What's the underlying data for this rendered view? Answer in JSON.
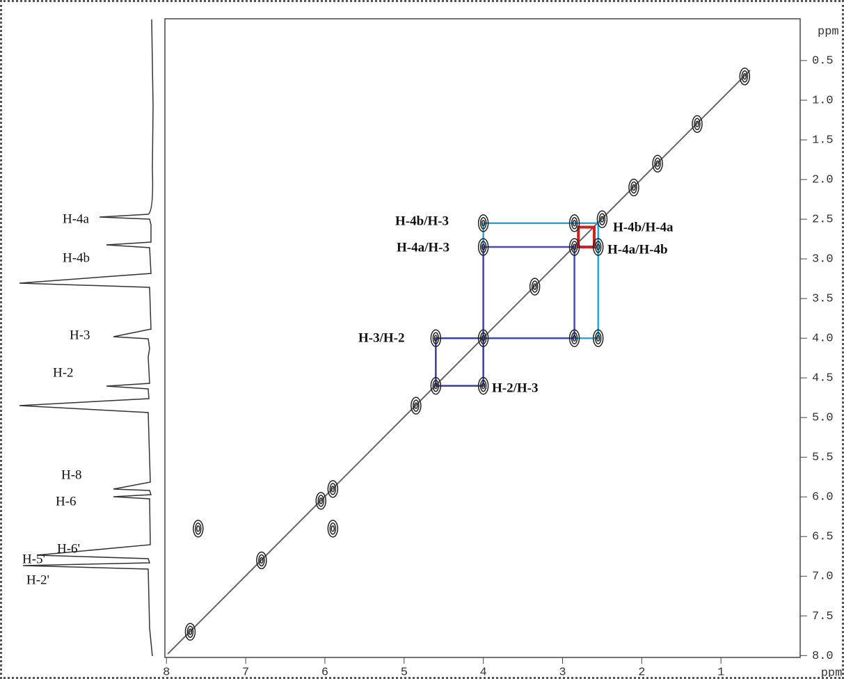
{
  "chart_data": {
    "type": "scatter",
    "xlabel": "ppm",
    "ylabel": "ppm",
    "xlim": [
      8.02,
      0
    ],
    "ylim": [
      0,
      8.05
    ],
    "xticks": [
      8,
      7,
      6,
      5,
      4,
      3,
      2,
      1
    ],
    "yticks": [
      0.5,
      {
        "value": 1,
        "label": "1.0"
      },
      1.5,
      {
        "value": 2,
        "label": "2.0"
      },
      2.5,
      {
        "value": 3,
        "label": "3.0"
      },
      3.5,
      {
        "value": 4,
        "label": "4.0"
      },
      4.5,
      {
        "value": 5,
        "label": "5.0"
      },
      5.5,
      {
        "value": 6,
        "label": "6.0"
      },
      6.5,
      {
        "value": 7,
        "label": "7.0"
      },
      7.5,
      {
        "value": 8,
        "label": "8.0"
      }
    ],
    "x": [
      0.7,
      1.3,
      1.8,
      2.1,
      2.5,
      2.85,
      3.35,
      4.0,
      4.6,
      4.85,
      5.9,
      6.05,
      6.8,
      7.7,
      4.0,
      4.0,
      2.85,
      2.55,
      2.55,
      2.85,
      4.6,
      4.0,
      7.6,
      5.9
    ],
    "values": [
      0.7,
      1.3,
      1.8,
      2.1,
      2.5,
      2.85,
      3.35,
      4.0,
      4.6,
      4.85,
      5.9,
      6.05,
      6.8,
      7.7,
      2.55,
      2.85,
      2.55,
      2.85,
      4.0,
      4.0,
      4.0,
      4.6,
      6.4,
      6.4
    ],
    "color": "#222222",
    "annotations": [
      "H-4b/H-3",
      "H-4a/H-3",
      "H-3/H-2",
      "H-2/H-3",
      "H-4b/H-4a",
      "H-4a/H-4b"
    ],
    "projection_labels": [
      "H-4a",
      "H-4b",
      "H-3",
      "H-2",
      "H-8",
      "H-6",
      "H-6'",
      "H-5'",
      "H-2'"
    ]
  }
}
